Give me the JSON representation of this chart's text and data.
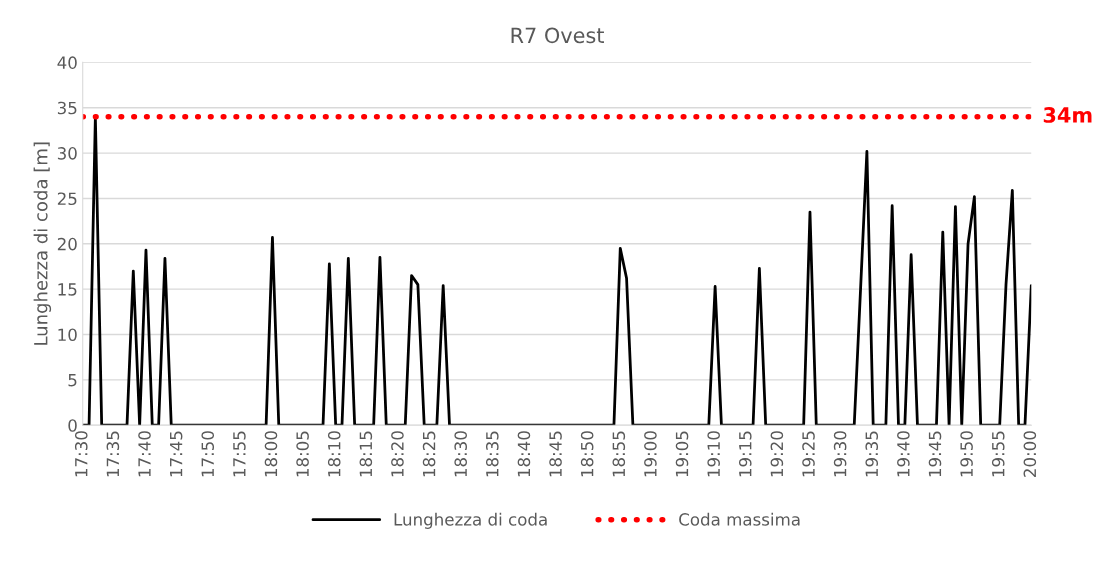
{
  "chart_data": {
    "type": "line",
    "title": "R7 Ovest",
    "ylabel": "Lunghezza di coda [m]",
    "series": [
      {
        "name": "Lunghezza di coda",
        "color": "#000000",
        "x": [
          17.5,
          17.5167,
          17.5333,
          17.55,
          17.6167,
          17.6333,
          17.65,
          17.6667,
          17.6833,
          17.7,
          17.7167,
          17.7333,
          17.9833,
          18.0,
          18.0167,
          18.1333,
          18.15,
          18.1667,
          18.1833,
          18.2,
          18.2167,
          18.2667,
          18.2833,
          18.3,
          18.35,
          18.3667,
          18.3833,
          18.4,
          18.4333,
          18.45,
          18.4667,
          18.9,
          18.9167,
          18.9333,
          18.95,
          19.15,
          19.1667,
          19.1833,
          19.2667,
          19.2833,
          19.3,
          19.4,
          19.4167,
          19.4333,
          19.5333,
          19.55,
          19.5667,
          19.5833,
          19.6167,
          19.6333,
          19.65,
          19.6667,
          19.6833,
          19.7,
          19.75,
          19.7667,
          19.7833,
          19.8,
          19.8167,
          19.8333,
          19.85,
          19.8667,
          19.9167,
          19.9333,
          19.95,
          19.9667,
          19.9833,
          20.0
        ],
        "values": [
          0,
          0,
          34,
          0,
          0,
          17,
          0,
          19.3,
          0,
          0,
          18.4,
          0,
          0,
          20.7,
          0,
          0,
          17.8,
          0,
          0,
          18.4,
          0,
          0,
          18.5,
          0,
          0,
          16.5,
          15.5,
          0,
          0,
          15.4,
          0,
          0,
          19.5,
          16.2,
          0,
          0,
          15.3,
          0,
          0,
          17.3,
          0,
          0,
          23.5,
          0,
          0,
          15,
          30.2,
          0,
          0,
          24.2,
          0,
          0,
          18.8,
          0,
          0,
          21.3,
          0,
          24.1,
          0,
          20,
          25.2,
          0,
          0,
          15.5,
          25.9,
          0,
          0,
          15.4
        ]
      }
    ],
    "ref_lines": [
      {
        "axis": "y",
        "value": 34,
        "label": "Coda massima",
        "color": "#ff0000",
        "line_style": "dotted"
      }
    ],
    "annotations": [
      {
        "text": "34m",
        "x": 20.0,
        "y": 34
      }
    ],
    "xlim": [
      17.5,
      20.0
    ],
    "xticks": [
      {
        "value": 17.5,
        "label": "17:30"
      },
      {
        "value": 17.5833,
        "label": "17:35"
      },
      {
        "value": 17.6667,
        "label": "17:40"
      },
      {
        "value": 17.75,
        "label": "17:45"
      },
      {
        "value": 17.8333,
        "label": "17:50"
      },
      {
        "value": 17.9167,
        "label": "17:55"
      },
      {
        "value": 18.0,
        "label": "18:00"
      },
      {
        "value": 18.0833,
        "label": "18:05"
      },
      {
        "value": 18.1667,
        "label": "18:10"
      },
      {
        "value": 18.25,
        "label": "18:15"
      },
      {
        "value": 18.3333,
        "label": "18:20"
      },
      {
        "value": 18.4167,
        "label": "18:25"
      },
      {
        "value": 18.5,
        "label": "18:30"
      },
      {
        "value": 18.5833,
        "label": "18:35"
      },
      {
        "value": 18.6667,
        "label": "18:40"
      },
      {
        "value": 18.75,
        "label": "18:45"
      },
      {
        "value": 18.8333,
        "label": "18:50"
      },
      {
        "value": 18.9167,
        "label": "18:55"
      },
      {
        "value": 19.0,
        "label": "19:00"
      },
      {
        "value": 19.0833,
        "label": "19:05"
      },
      {
        "value": 19.1667,
        "label": "19:10"
      },
      {
        "value": 19.25,
        "label": "19:15"
      },
      {
        "value": 19.3333,
        "label": "19:20"
      },
      {
        "value": 19.4167,
        "label": "19:25"
      },
      {
        "value": 19.5,
        "label": "19:30"
      },
      {
        "value": 19.5833,
        "label": "19:35"
      },
      {
        "value": 19.6667,
        "label": "19:40"
      },
      {
        "value": 19.75,
        "label": "19:45"
      },
      {
        "value": 19.8333,
        "label": "19:50"
      },
      {
        "value": 19.9167,
        "label": "19:55"
      },
      {
        "value": 20.0,
        "label": "20:00"
      }
    ],
    "ylim": [
      0,
      40
    ],
    "yticks": [
      0,
      5,
      10,
      15,
      20,
      25,
      30,
      35,
      40
    ],
    "grid": "y",
    "legend": "bottom",
    "marker": "none",
    "line_style": "solid"
  }
}
